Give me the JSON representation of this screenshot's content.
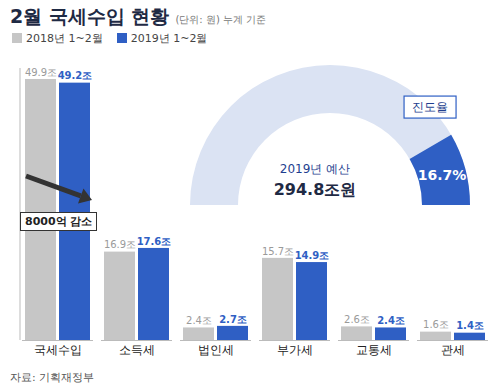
{
  "chart_data": {
    "type": "bar",
    "title": "2월 국세수입 현황",
    "subtitle": "(단위: 원) 누계 기준",
    "categories": [
      "국세수입",
      "소득세",
      "법인세",
      "부가세",
      "교통세",
      "관세"
    ],
    "series": [
      {
        "name": "2018년 1~2월",
        "color": "#c6c6c6",
        "values": [
          49.9,
          16.9,
          2.4,
          15.7,
          2.6,
          1.6
        ],
        "value_labels": [
          "49.9조",
          "16.9조",
          "2.4조",
          "15.7조",
          "2.6조",
          "1.6조"
        ]
      },
      {
        "name": "2019년 1~2월",
        "color": "#2f5fc4",
        "values": [
          49.2,
          17.6,
          2.7,
          14.9,
          2.4,
          1.4
        ],
        "value_labels": [
          "49.2조",
          "17.6조",
          "2.7조",
          "14.9조",
          "2.4조",
          "1.4조"
        ]
      }
    ],
    "ylim": [
      0,
      52
    ],
    "yticks": [],
    "data_labels": true,
    "tick_labels": "x",
    "annotations": [
      "8000억 감소"
    ],
    "gauge": {
      "label": "진도율",
      "range": [
        0,
        100
      ],
      "value": 16.7,
      "value_label": "16.7%",
      "budget_label": "2019년 예산",
      "budget": "294.8조원"
    },
    "source": "자료: 기획재정부"
  }
}
